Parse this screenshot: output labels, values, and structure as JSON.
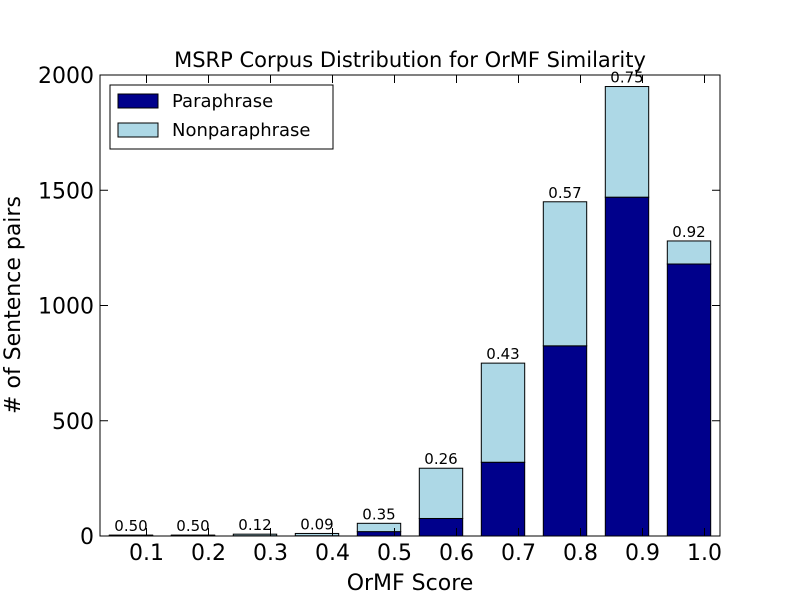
{
  "chart_data": {
    "type": "bar",
    "stacked": true,
    "title": "MSRP Corpus Distribution for OrMF Similarity",
    "xlabel": "OrMF Score",
    "ylabel": "# of Sentence pairs",
    "ylim": [
      0,
      2000
    ],
    "yticks": [
      "0",
      "500",
      "1000",
      "1500",
      "2000"
    ],
    "xticks": [
      "0.1",
      "0.2",
      "0.3",
      "0.4",
      "0.5",
      "0.6",
      "0.7",
      "0.8",
      "0.9",
      "1.0"
    ],
    "legend_position": "top-left",
    "series": [
      {
        "name": "Paraphrase",
        "color": "#00008b",
        "values": [
          2,
          2,
          1,
          1,
          19,
          76,
          320,
          825,
          1470,
          1180
        ]
      },
      {
        "name": "Nonparaphrase",
        "color": "#add8e6",
        "values": [
          2,
          2,
          7,
          10,
          36,
          218,
          430,
          625,
          480,
          100
        ]
      }
    ],
    "bar_labels": [
      "0.50",
      "0.50",
      "0.12",
      "0.09",
      "0.35",
      "0.26",
      "0.43",
      "0.57",
      "0.75",
      "0.92"
    ]
  }
}
